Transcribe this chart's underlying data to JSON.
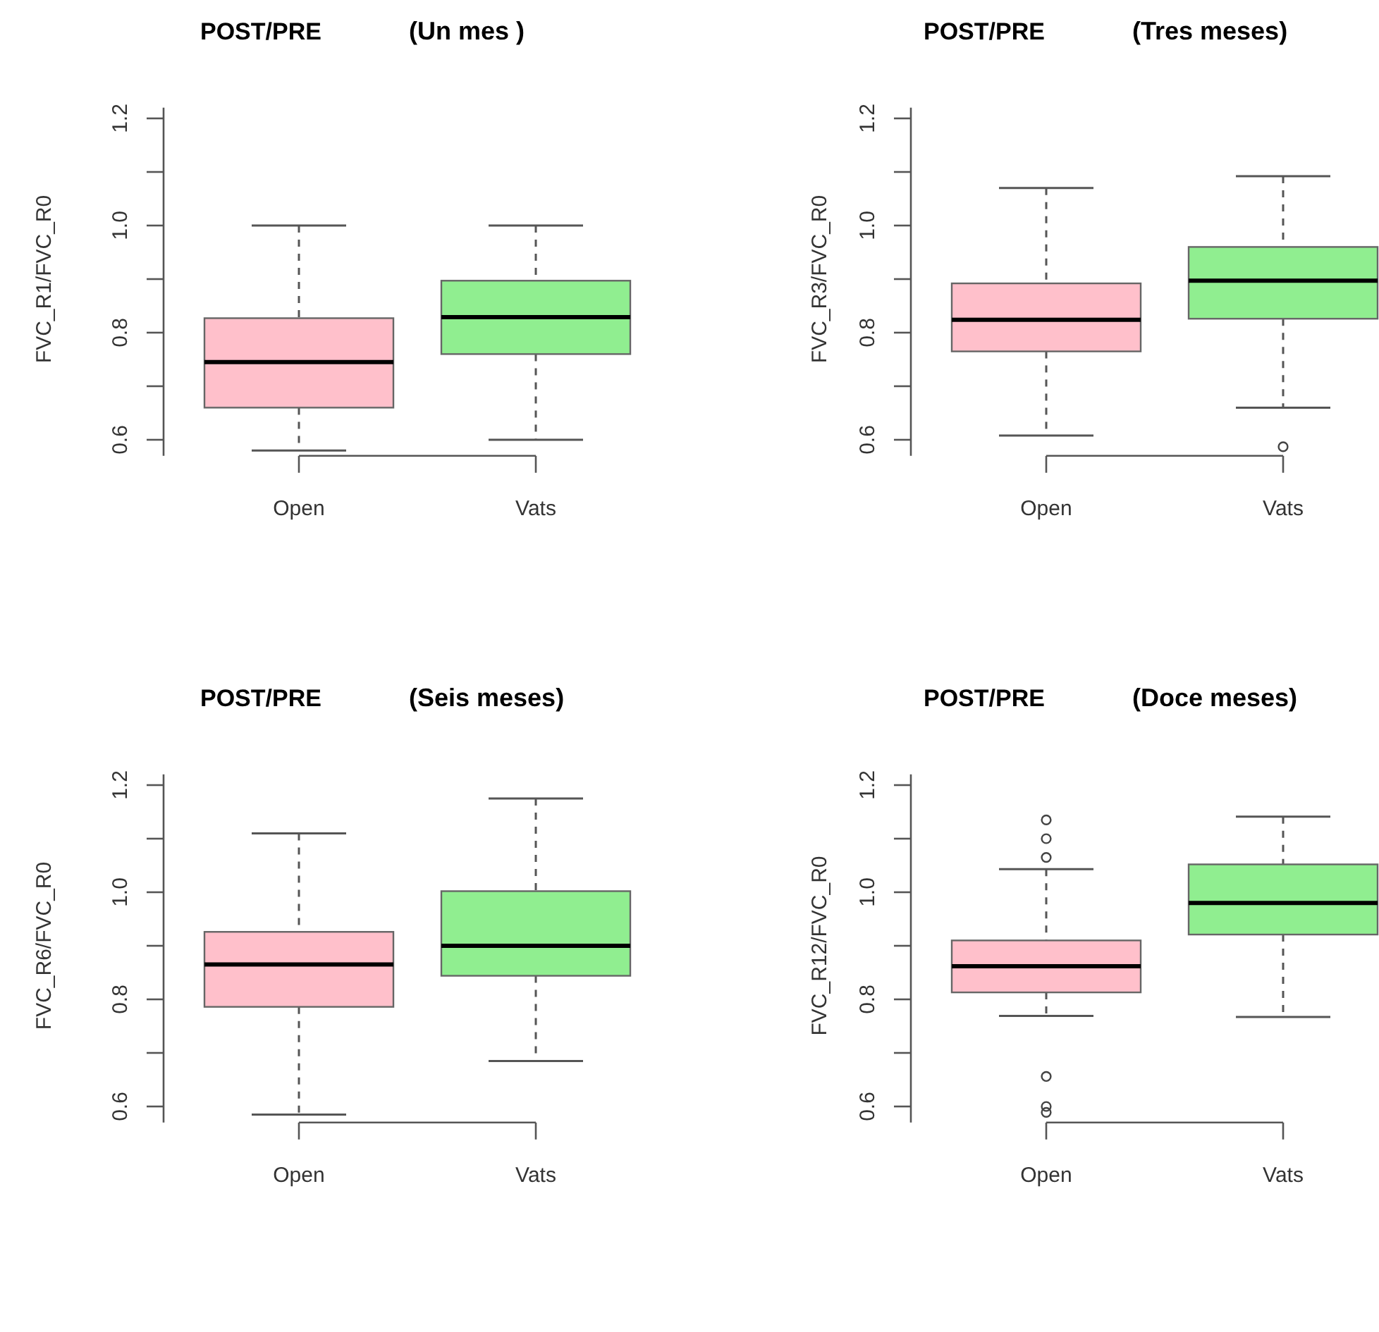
{
  "chart_data": [
    {
      "type": "box",
      "title": "POST/PRE",
      "subtitle": "(Un mes )",
      "ylabel": "FVC_R1/FVC_R0",
      "categories": [
        "Open",
        "Vats"
      ],
      "colors": [
        "#ffc0cb",
        "#90ee90"
      ],
      "ylim": [
        0.57,
        1.22
      ],
      "yticks": [
        0.6,
        {
          "value": 0.7,
          "label": null
        },
        0.8,
        {
          "value": 0.9,
          "label": null
        },
        {
          "value": 1,
          "label": "1.0"
        },
        {
          "value": 1.1,
          "label": null
        },
        1.2
      ],
      "boxes": [
        {
          "low": 0.58,
          "q1": 0.66,
          "median": 0.745,
          "q3": 0.827,
          "high": 1.0
        },
        {
          "low": 0.6,
          "q1": 0.76,
          "median": 0.829,
          "q3": 0.897,
          "high": 1.0
        }
      ]
    },
    {
      "type": "box",
      "title": "POST/PRE",
      "subtitle": "(Tres meses)",
      "ylabel": "FVC_R3/FVC_R0",
      "categories": [
        "Open",
        "Vats"
      ],
      "colors": [
        "#ffc0cb",
        "#90ee90"
      ],
      "ylim": [
        0.57,
        1.22
      ],
      "yticks": [
        0.6,
        {
          "value": 0.7,
          "label": null
        },
        0.8,
        {
          "value": 0.9,
          "label": null
        },
        {
          "value": 1,
          "label": "1.0"
        },
        {
          "value": 1.1,
          "label": null
        },
        1.2
      ],
      "boxes": [
        {
          "low": 0.608,
          "q1": 0.765,
          "median": 0.824,
          "q3": 0.892,
          "high": 1.07
        },
        {
          "low": 0.66,
          "q1": 0.826,
          "median": 0.897,
          "q3": 0.96,
          "high": 1.092,
          "outliers": [
            0.587
          ]
        }
      ]
    },
    {
      "type": "box",
      "title": "POST/PRE",
      "subtitle": "(Seis meses)",
      "ylabel": "FVC_R6/FVC_R0",
      "categories": [
        "Open",
        "Vats"
      ],
      "colors": [
        "#ffc0cb",
        "#90ee90"
      ],
      "ylim": [
        0.57,
        1.22
      ],
      "yticks": [
        0.6,
        {
          "value": 0.7,
          "label": null
        },
        0.8,
        {
          "value": 0.9,
          "label": null
        },
        {
          "value": 1,
          "label": "1.0"
        },
        {
          "value": 1.1,
          "label": null
        },
        1.2
      ],
      "boxes": [
        {
          "low": 0.585,
          "q1": 0.786,
          "median": 0.865,
          "q3": 0.926,
          "high": 1.11
        },
        {
          "low": 0.685,
          "q1": 0.844,
          "median": 0.9,
          "q3": 1.002,
          "high": 1.175
        }
      ]
    },
    {
      "type": "box",
      "title": "POST/PRE",
      "subtitle": "(Doce meses)",
      "ylabel": "FVC_R12/FVC_R0",
      "categories": [
        "Open",
        "Vats"
      ],
      "colors": [
        "#ffc0cb",
        "#90ee90"
      ],
      "ylim": [
        0.57,
        1.22
      ],
      "yticks": [
        0.6,
        {
          "value": 0.7,
          "label": null
        },
        0.8,
        {
          "value": 0.9,
          "label": null
        },
        {
          "value": 1,
          "label": "1.0"
        },
        {
          "value": 1.1,
          "label": null
        },
        1.2
      ],
      "boxes": [
        {
          "low": 0.769,
          "q1": 0.813,
          "median": 0.862,
          "q3": 0.91,
          "high": 1.043,
          "outliers": [
            1.135,
            1.1,
            1.065,
            0.656,
            0.6,
            0.589
          ]
        },
        {
          "low": 0.767,
          "q1": 0.921,
          "median": 0.98,
          "q3": 1.052,
          "high": 1.141
        }
      ]
    }
  ]
}
